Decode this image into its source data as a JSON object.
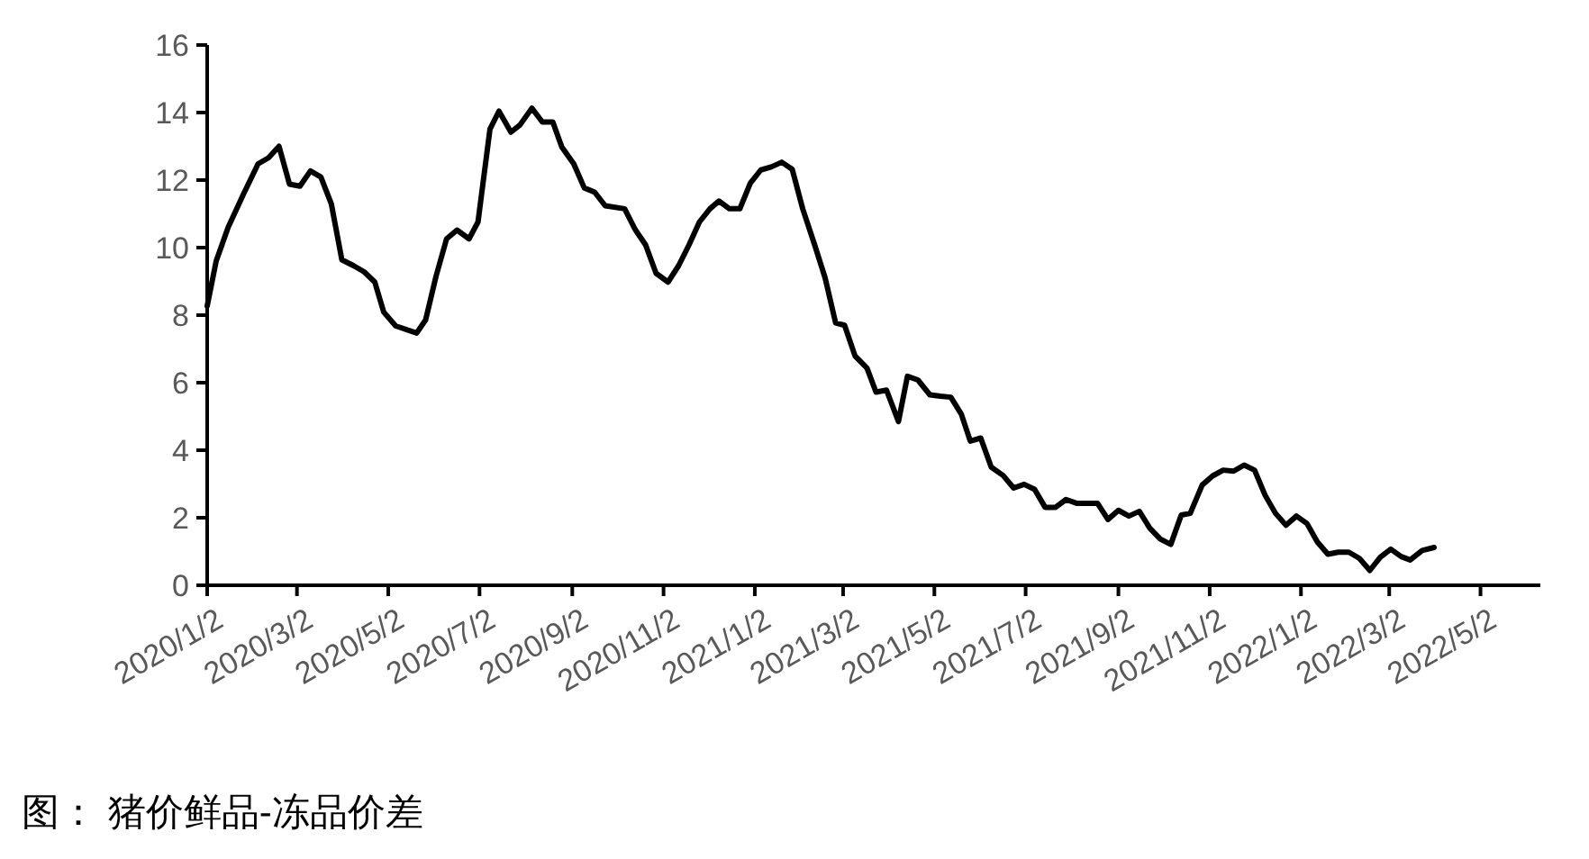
{
  "chart_data": {
    "type": "line",
    "title": "图： 猪价鲜品-冻品价差",
    "x": [
      "2020-01-02",
      "2020-01-08",
      "2020-01-16",
      "2020-01-26",
      "2020-02-05",
      "2020-02-12",
      "2020-02-19",
      "2020-02-26",
      "2020-03-04",
      "2020-03-11",
      "2020-03-18",
      "2020-03-25",
      "2020-04-01",
      "2020-04-09",
      "2020-04-16",
      "2020-04-23",
      "2020-04-29",
      "2020-05-07",
      "2020-05-21",
      "2020-05-27",
      "2020-06-03",
      "2020-06-10",
      "2020-06-17",
      "2020-06-25",
      "2020-07-01",
      "2020-07-09",
      "2020-07-15",
      "2020-07-23",
      "2020-07-29",
      "2020-08-06",
      "2020-08-13",
      "2020-08-20",
      "2020-08-26",
      "2020-09-03",
      "2020-09-10",
      "2020-09-17",
      "2020-09-24",
      "2020-10-07",
      "2020-10-14",
      "2020-10-21",
      "2020-10-28",
      "2020-11-05",
      "2020-11-12",
      "2020-11-19",
      "2020-11-26",
      "2020-12-03",
      "2020-12-09",
      "2020-12-16",
      "2020-12-23",
      "2020-12-30",
      "2021-01-06",
      "2021-01-13",
      "2021-01-20",
      "2021-01-27",
      "2021-02-03",
      "2021-02-11",
      "2021-02-18",
      "2021-02-25",
      "2021-03-03",
      "2021-03-10",
      "2021-03-18",
      "2021-03-24",
      "2021-03-31",
      "2021-04-08",
      "2021-04-14",
      "2021-04-21",
      "2021-04-29",
      "2021-05-06",
      "2021-05-13",
      "2021-05-20",
      "2021-05-26",
      "2021-06-02",
      "2021-06-09",
      "2021-06-17",
      "2021-06-24",
      "2021-07-01",
      "2021-07-08",
      "2021-07-15",
      "2021-07-22",
      "2021-07-29",
      "2021-08-05",
      "2021-08-19",
      "2021-08-26",
      "2021-09-02",
      "2021-09-09",
      "2021-09-16",
      "2021-09-23",
      "2021-09-30",
      "2021-10-07",
      "2021-10-14",
      "2021-10-20",
      "2021-10-28",
      "2021-11-04",
      "2021-11-11",
      "2021-11-18",
      "2021-11-25",
      "2021-12-02",
      "2021-12-09",
      "2021-12-16",
      "2021-12-23",
      "2021-12-30",
      "2022-01-06",
      "2022-01-13",
      "2022-01-20",
      "2022-01-27",
      "2022-02-03",
      "2022-02-10",
      "2022-02-17",
      "2022-02-24",
      "2022-03-03",
      "2022-03-10",
      "2022-03-16",
      "2022-03-24",
      "2022-04-01"
    ],
    "series": [
      {
        "color": "#000000",
        "values": [
          8.27,
          9.6,
          10.6,
          11.56,
          12.48,
          12.66,
          13.0,
          11.88,
          11.82,
          12.27,
          12.09,
          11.29,
          9.64,
          9.46,
          9.28,
          8.98,
          8.09,
          7.68,
          7.47,
          7.86,
          9.16,
          10.26,
          10.52,
          10.26,
          10.76,
          13.51,
          14.04,
          13.42,
          13.63,
          14.13,
          13.72,
          13.72,
          12.98,
          12.48,
          11.77,
          11.64,
          11.24,
          11.15,
          10.54,
          10.08,
          9.24,
          8.98,
          9.46,
          10.08,
          10.76,
          11.15,
          11.38,
          11.15,
          11.15,
          11.91,
          12.3,
          12.39,
          12.53,
          12.32,
          11.15,
          10.08,
          9.1,
          7.77,
          7.7,
          6.79,
          6.43,
          5.72,
          5.78,
          4.85,
          6.19,
          6.08,
          5.64,
          5.6,
          5.57,
          5.07,
          4.27,
          4.36,
          3.5,
          3.25,
          2.88,
          2.99,
          2.84,
          2.31,
          2.31,
          2.54,
          2.43,
          2.43,
          1.95,
          2.22,
          2.05,
          2.19,
          1.69,
          1.37,
          1.21,
          2.08,
          2.13,
          2.97,
          3.24,
          3.41,
          3.38,
          3.56,
          3.41,
          2.67,
          2.13,
          1.78,
          2.05,
          1.83,
          1.28,
          0.92,
          0.98,
          0.98,
          0.8,
          0.44,
          0.83,
          1.07,
          0.85,
          0.75,
          1.03,
          1.12
        ]
      }
    ],
    "xlim": [
      "2020-01-02",
      "2022-06-11"
    ],
    "xticks": [
      {
        "value": "2020-01-02",
        "label": "2020/1/2"
      },
      {
        "value": "2020-03-02",
        "label": "2020/3/2"
      },
      {
        "value": "2020-05-02",
        "label": "2020/5/2"
      },
      {
        "value": "2020-07-02",
        "label": "2020/7/2"
      },
      {
        "value": "2020-09-02",
        "label": "2020/9/2"
      },
      {
        "value": "2020-11-02",
        "label": "2020/11/2"
      },
      {
        "value": "2021-01-02",
        "label": "2021/1/2"
      },
      {
        "value": "2021-03-02",
        "label": "2021/3/2"
      },
      {
        "value": "2021-05-02",
        "label": "2021/5/2"
      },
      {
        "value": "2021-07-02",
        "label": "2021/7/2"
      },
      {
        "value": "2021-09-02",
        "label": "2021/9/2"
      },
      {
        "value": "2021-11-02",
        "label": "2021/11/2"
      },
      {
        "value": "2022-01-02",
        "label": "2022/1/2"
      },
      {
        "value": "2022-03-02",
        "label": "2022/3/2"
      },
      {
        "value": "2022-05-02",
        "label": "2022/5/2"
      }
    ],
    "ylim": [
      0,
      16
    ],
    "yticks": [
      0,
      2,
      4,
      6,
      8,
      10,
      12,
      14,
      16
    ],
    "grid": false,
    "marker": "none",
    "line_style": "solid"
  }
}
